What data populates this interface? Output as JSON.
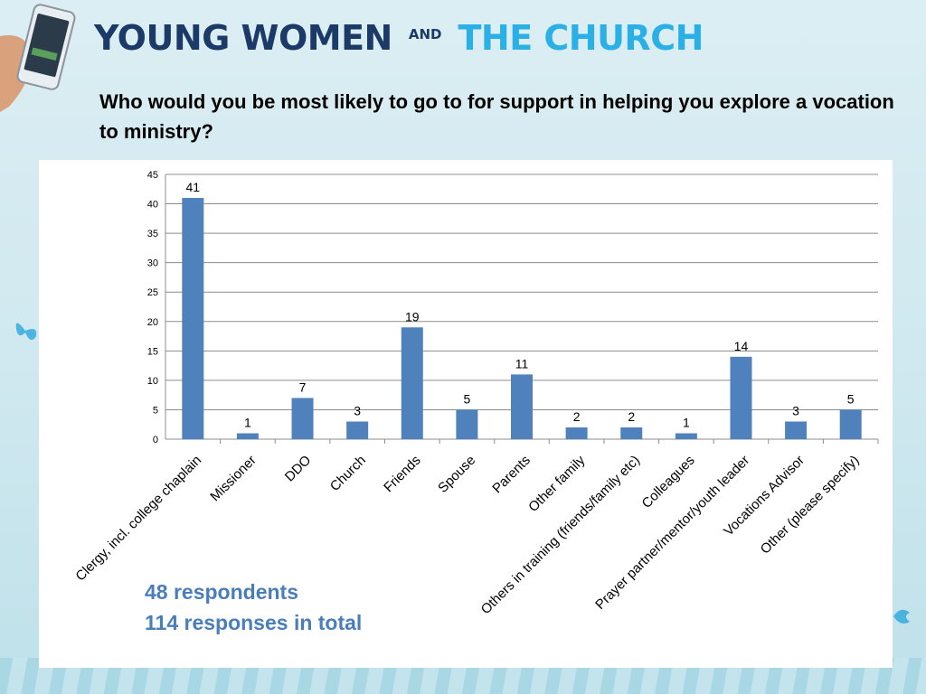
{
  "header": {
    "logo_part1": "YOUNG WOMEN",
    "logo_and": "AND",
    "logo_part2": "THE CHURCH",
    "question": "Who would you be most likely to go to for support in helping you explore a vocation to ministry?"
  },
  "stats": {
    "respondents": "48 respondents",
    "responses": "114 responses in total"
  },
  "colors": {
    "bar": "#4f81bd",
    "logo_dark": "#1b3a67",
    "logo_light": "#2ab0e6",
    "stats_text": "#4a7ebb"
  },
  "chart_data": {
    "type": "bar",
    "title": "",
    "xlabel": "",
    "ylabel": "",
    "ylim": [
      0,
      45
    ],
    "yticks": [
      0,
      5,
      10,
      15,
      20,
      25,
      30,
      35,
      40,
      45
    ],
    "grid": true,
    "categories": [
      "Clergy, incl. college chaplain",
      "Missioner",
      "DDO",
      "Church",
      "Friends",
      "Spouse",
      "Parents",
      "Other family",
      "Others in training (friends/family etc)",
      "Colleagues",
      "Prayer partner/mentor/youth leader",
      "Vocations Advisor",
      "Other (please specify)"
    ],
    "values": [
      41,
      1,
      7,
      3,
      19,
      5,
      11,
      2,
      2,
      1,
      14,
      3,
      5
    ]
  }
}
